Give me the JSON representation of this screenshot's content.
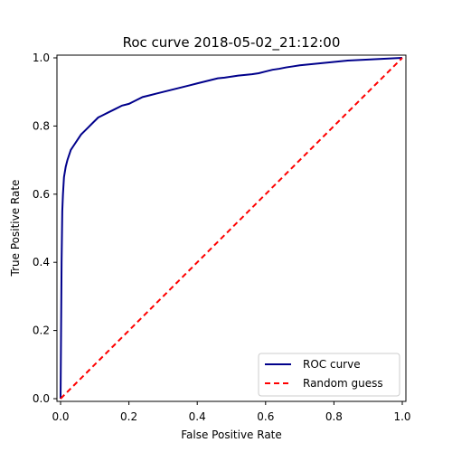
{
  "chart_data": {
    "type": "line",
    "title": "Roc curve 2018-05-02_21:12:00",
    "xlabel": "False Positive Rate",
    "ylabel": "True Positive Rate",
    "xlim": [
      0.0,
      1.0
    ],
    "ylim": [
      0.0,
      1.0
    ],
    "xticks": [
      "0.0",
      "0.2",
      "0.4",
      "0.6",
      "0.8",
      "1.0"
    ],
    "yticks": [
      "0.0",
      "0.2",
      "0.4",
      "0.6",
      "0.8",
      "1.0"
    ],
    "grid": false,
    "legend_position": "lower-right",
    "series": [
      {
        "name": "ROC curve",
        "color": "#00008b",
        "style": "solid",
        "x": [
          0.0,
          0.003,
          0.005,
          0.007,
          0.01,
          0.015,
          0.02,
          0.025,
          0.03,
          0.04,
          0.05,
          0.06,
          0.07,
          0.08,
          0.09,
          0.1,
          0.11,
          0.12,
          0.14,
          0.16,
          0.18,
          0.2,
          0.22,
          0.24,
          0.26,
          0.28,
          0.3,
          0.32,
          0.34,
          0.36,
          0.38,
          0.4,
          0.42,
          0.44,
          0.46,
          0.48,
          0.5,
          0.52,
          0.54,
          0.56,
          0.58,
          0.6,
          0.62,
          0.64,
          0.66,
          0.68,
          0.7,
          0.72,
          0.74,
          0.76,
          0.78,
          0.8,
          0.82,
          0.84,
          0.86,
          0.88,
          0.9,
          0.92,
          0.94,
          0.96,
          0.98,
          1.0
        ],
        "y": [
          0.0,
          0.4,
          0.55,
          0.6,
          0.65,
          0.68,
          0.7,
          0.715,
          0.73,
          0.745,
          0.76,
          0.775,
          0.785,
          0.795,
          0.805,
          0.815,
          0.825,
          0.83,
          0.84,
          0.85,
          0.86,
          0.865,
          0.875,
          0.885,
          0.89,
          0.895,
          0.9,
          0.905,
          0.91,
          0.915,
          0.92,
          0.925,
          0.93,
          0.935,
          0.94,
          0.942,
          0.945,
          0.948,
          0.95,
          0.952,
          0.955,
          0.96,
          0.965,
          0.968,
          0.972,
          0.975,
          0.978,
          0.98,
          0.982,
          0.984,
          0.986,
          0.988,
          0.99,
          0.992,
          0.993,
          0.994,
          0.995,
          0.996,
          0.997,
          0.998,
          0.999,
          1.0
        ]
      },
      {
        "name": "Random guess",
        "color": "#ff0000",
        "style": "dashed",
        "x": [
          0.0,
          1.0
        ],
        "y": [
          0.0,
          1.0
        ]
      }
    ]
  }
}
